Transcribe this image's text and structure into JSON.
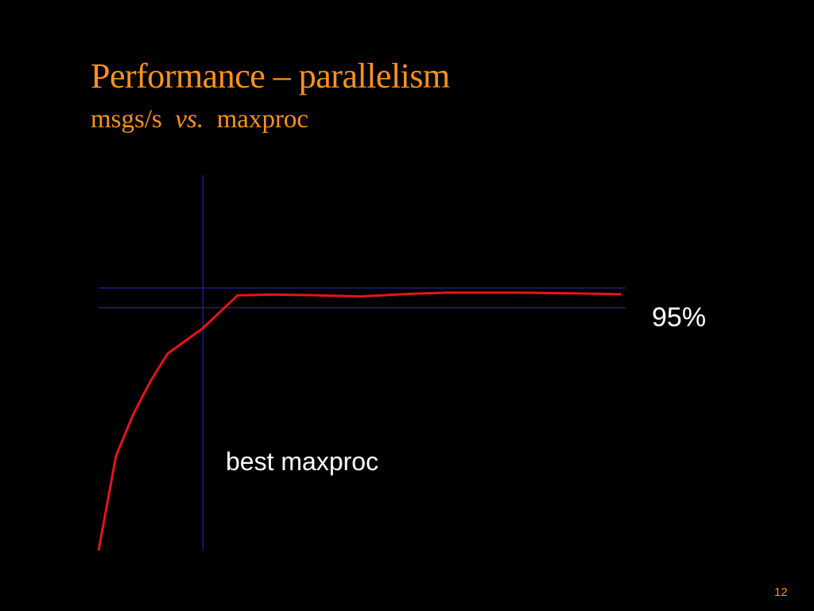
{
  "slide": {
    "title": "Performance – parallelism",
    "subtitle_part1": "msgs/s",
    "subtitle_vs": "vs.",
    "subtitle_part2": "maxproc",
    "page_number": "12"
  },
  "colors": {
    "background": "#000000",
    "title": "#f7931e",
    "curve": "#e4141b",
    "guides": "#1e1e7a",
    "text": "#ffffff"
  },
  "chart_data": {
    "type": "line",
    "title": "",
    "xlabel": "",
    "ylabel": "",
    "xlim": [
      0,
      100
    ],
    "ylim": [
      0,
      100
    ],
    "grid": false,
    "series": [
      {
        "name": "",
        "x": [
          0,
          3.3,
          6.6,
          10,
          13.1,
          19.8,
          26.4,
          33,
          39.7,
          49.6,
          59.5,
          66.1,
          79.3,
          89.3,
          99.2
        ],
        "y": [
          0,
          36,
          52,
          65,
          75,
          84.7,
          97.2,
          97.5,
          97.3,
          96.8,
          97.8,
          98.2,
          98.2,
          98,
          97.6
        ]
      }
    ],
    "guides": {
      "threshold_y": 92.5,
      "threshold_label": "95%",
      "best_x": 19.8,
      "best_label": "best maxproc"
    }
  }
}
